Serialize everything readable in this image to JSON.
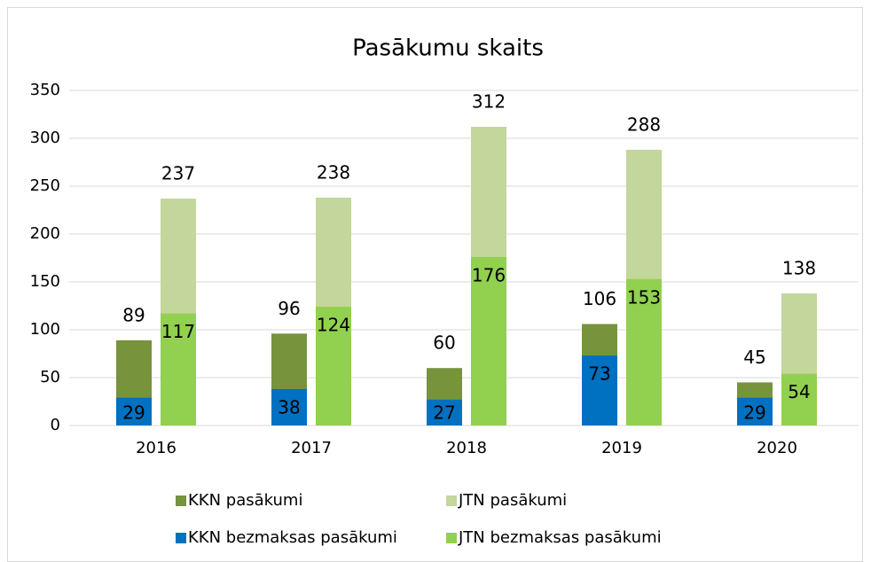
{
  "chart_data": {
    "type": "bar",
    "title": "Pasākumu skaits",
    "categories": [
      "2016",
      "2017",
      "2018",
      "2019",
      "2020"
    ],
    "series": [
      {
        "name": "KKN pasākumi",
        "color": "#77933c",
        "values": [
          89,
          96,
          60,
          106,
          45
        ]
      },
      {
        "name": "JTN pasākumi",
        "color": "#c3d69b",
        "values": [
          237,
          238,
          312,
          288,
          138
        ]
      },
      {
        "name": "KKN bezmaksas pasākumi",
        "color": "#0070c0",
        "values": [
          29,
          38,
          27,
          73,
          29
        ]
      },
      {
        "name": "JTN bezmaksas pasākumi",
        "color": "#92d050",
        "values": [
          117,
          124,
          176,
          153,
          54
        ]
      }
    ],
    "ylim": [
      0,
      350
    ],
    "yticks": [
      0,
      50,
      100,
      150,
      200,
      250,
      300,
      350
    ],
    "grid": true
  }
}
